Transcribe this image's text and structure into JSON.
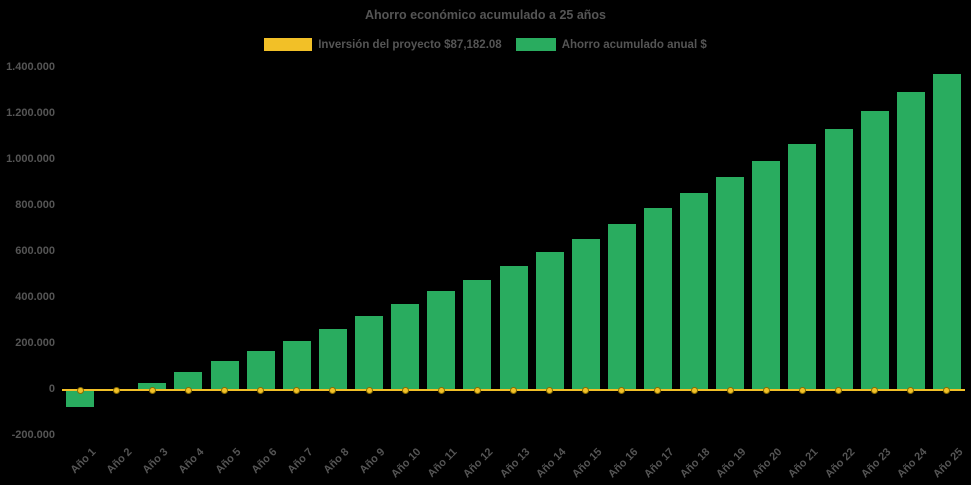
{
  "title": "Ahorro económico acumulado a 25 años",
  "colors": {
    "background": "#000000",
    "text": "#555555",
    "bar_green": "#29AC5F",
    "line_yellow": "#F2C027"
  },
  "legend": [
    {
      "label": "Inversión del proyecto $87,182.08",
      "color": "#F2C027",
      "type": "line"
    },
    {
      "label": "Ahorro acumulado anual $",
      "color": "#29AC5F",
      "type": "bar"
    }
  ],
  "chart_data": {
    "type": "bar",
    "title": "Ahorro económico acumulado a 25 años",
    "xlabel": "",
    "ylabel": "",
    "categories": [
      "Año 1",
      "Año 2",
      "Año 3",
      "Año 4",
      "Año 5",
      "Año 6",
      "Año 7",
      "Año 8",
      "Año 9",
      "Año 10",
      "Año 11",
      "Año 12",
      "Año 13",
      "Año 14",
      "Año 15",
      "Año 16",
      "Año 17",
      "Año 18",
      "Año 19",
      "Año 20",
      "Año 21",
      "Año 22",
      "Año 23",
      "Año 24",
      "Año 25"
    ],
    "series": [
      {
        "name": "Ahorro acumulado anual $",
        "type": "bar",
        "color": "#29AC5F",
        "values": [
          -75000,
          0,
          30000,
          80000,
          125000,
          170000,
          215000,
          265000,
          320000,
          375000,
          430000,
          480000,
          540000,
          600000,
          655000,
          720000,
          790000,
          855000,
          925000,
          995000,
          1070000,
          1135000,
          1215000,
          1295000,
          1375000
        ]
      },
      {
        "name": "Inversión del proyecto $87,182.08",
        "type": "line",
        "color": "#F2C027",
        "constant_value_plotted_at": 0
      }
    ],
    "y_ticks": [
      "1.400.000",
      "1.200.000",
      "1.000.000",
      "800.000",
      "600.000",
      "400.000",
      "200.000",
      "0",
      "-200.000"
    ],
    "ylim": [
      -200000,
      1400000
    ],
    "grid": false,
    "legend_position": "top"
  }
}
